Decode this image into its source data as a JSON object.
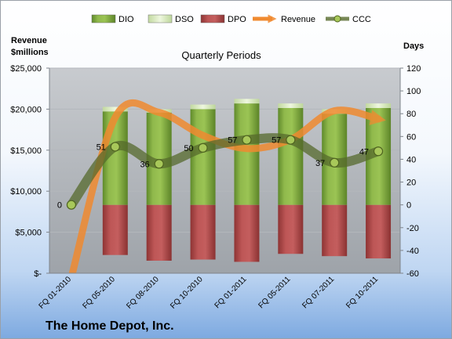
{
  "chart_data": {
    "type": "bar",
    "title": "Quarterly Periods",
    "company": "The Home Depot, Inc.",
    "y_left_label": [
      "Revenue",
      "$millions"
    ],
    "y_right_label": "Days",
    "categories": [
      "FQ 01-2010",
      "FQ 05-2010",
      "FQ 08-2010",
      "FQ 10-2010",
      "FQ 01-2011",
      "FQ 05-2011",
      "FQ 07-2011",
      "FQ 10-2011"
    ],
    "y_left_ticks": [
      "$-",
      "$5,000",
      "$10,000",
      "$15,000",
      "$20,000",
      "$25,000"
    ],
    "y_left_lim": [
      0,
      25000
    ],
    "y_right_ticks": [
      "-60",
      "-40",
      "-20",
      "0",
      "20",
      "40",
      "60",
      "80",
      "100",
      "120"
    ],
    "y_right_lim": [
      -60,
      120
    ],
    "legend_position": "top",
    "series": [
      {
        "name": "DIO",
        "kind": "bar",
        "color": "#7aa23a",
        "values": [
          null,
          82,
          81,
          84,
          89,
          85,
          80,
          85
        ]
      },
      {
        "name": "DSO",
        "kind": "bar",
        "color": "#d8ecb8",
        "values": [
          null,
          4,
          3,
          4,
          4,
          4,
          4,
          4
        ]
      },
      {
        "name": "DPO",
        "kind": "bar",
        "color": "#b84a4a",
        "values": [
          null,
          -44,
          -49,
          -48,
          -50,
          -43,
          -45,
          -47
        ]
      },
      {
        "name": "Revenue",
        "kind": "line",
        "color": "#f08a30",
        "values": [
          -500,
          19000,
          19600,
          16800,
          15200,
          16300,
          19800,
          18800
        ]
      },
      {
        "name": "CCC",
        "kind": "line",
        "color": "#566a2c",
        "values": [
          0,
          51,
          36,
          50,
          57,
          57,
          37,
          47
        ]
      }
    ],
    "data_labels": [
      "0",
      "51",
      "36",
      "50",
      "57",
      "57",
      "37",
      "47"
    ]
  }
}
